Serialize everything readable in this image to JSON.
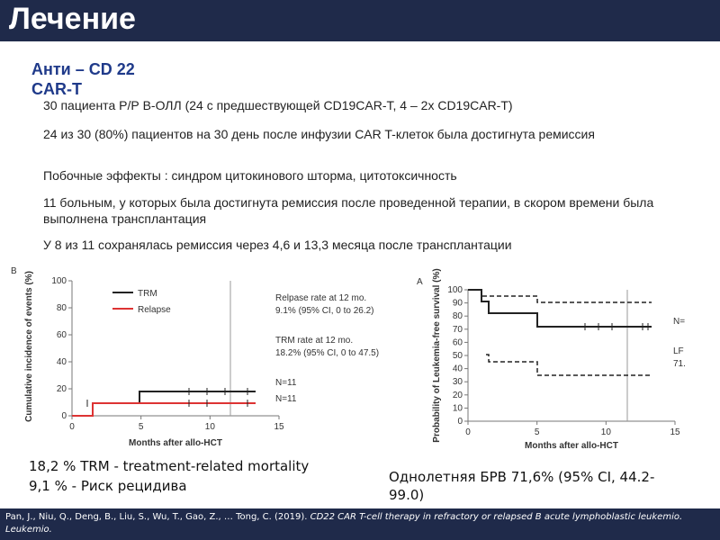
{
  "header": {
    "title": "Лечение"
  },
  "subtitle": "Анти – CD 22 CAR-T",
  "bullets": [
    "30 пациента Р/Р В-ОЛЛ (24 с предшествующей CD19CAR-T, 4 – 2х CD19CAR-T)",
    "24 из 30 (80%) пациентов на 30 день после инфузии CAR T-клеток была достигнута ремиссия",
    "Побочные эффекты : синдром цитокинового шторма, цитотоксичность",
    "11 больным, у которых была достигнута ремиссия после проведенной терапии, в скором времени была выполнена трансплантация",
    "У 8 из 11 сохранялась ремиссия через 4,6 и 13,3 месяца после трансплантации"
  ],
  "figure_b": {
    "panel": "B",
    "y_label": "Cumulative incidence of events (%)",
    "x_label": "Months after allo-HCT",
    "yticks": [
      "0",
      "20",
      "40",
      "60",
      "80",
      "100"
    ],
    "xticks": [
      "0",
      "5",
      "10",
      "15"
    ],
    "legend": [
      "TRM",
      "Relapse"
    ],
    "annotations": [
      "Relpase rate at 12  mo.",
      "9.1% (95% CI, 0 to 26.2)",
      "TRM rate at 12  mo.",
      "18.2% (95% CI, 0 to 47.5)",
      "N=11",
      "N=11"
    ]
  },
  "figure_a": {
    "panel": "A",
    "y_label": "Probability of Leukemia-free survival (%)",
    "x_label": "Months after allo-HCT",
    "yticks": [
      "0",
      "10",
      "20",
      "30",
      "40",
      "50",
      "60",
      "70",
      "80",
      "90",
      "100"
    ],
    "xticks": [
      "0",
      "5",
      "10",
      "15"
    ],
    "annotations": [
      "N=",
      "LF",
      "71."
    ]
  },
  "captions": [
    "18,2 % TRM - treatment-related mortality",
    "9,1 % - Риск рецидива",
    "Однолетняя БРВ 71,6% (95% CI, 44.2-99.0)"
  ],
  "footer": {
    "authors": "Pan, J., Niu, Q., Deng, B., Liu, S., Wu, T., Gao, Z., … Tong, C. (2019). ",
    "title": "CD22 CAR T-cell therapy in refractory or relapsed B acute lymphoblastic leukemio. Leukemio."
  }
}
